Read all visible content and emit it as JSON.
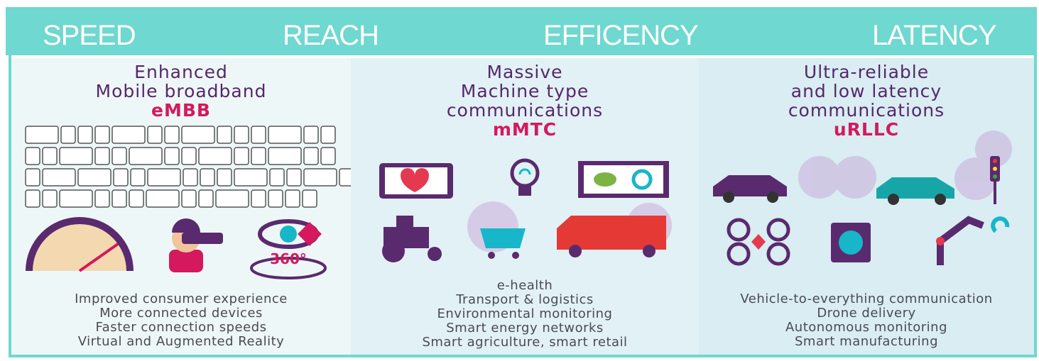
{
  "header": {
    "labels": [
      "SPEED",
      "REACH",
      "EFFICENCY",
      "LATENCY"
    ]
  },
  "columns": [
    {
      "title_lines": [
        "Enhanced",
        "Mobile broadband"
      ],
      "acronym": "eMBB",
      "icon_label": "360°",
      "items": [
        "Improved consumer experience",
        "More connected devices",
        "Faster connection speeds",
        "Virtual and Augmented Reality"
      ]
    },
    {
      "title_lines": [
        "Massive",
        "Machine type",
        "communications"
      ],
      "acronym": "mMTC",
      "items": [
        "e-health",
        "Transport & logistics",
        "Environmental monitoring",
        "Smart energy networks",
        "Smart agriculture, smart retail"
      ]
    },
    {
      "title_lines": [
        "Ultra-reliable",
        "and low latency",
        "communications"
      ],
      "acronym": "uRLLC",
      "items": [
        "Vehicle-to-everything communication",
        "Drone delivery",
        "Autonomous monitoring",
        "Smart manufacturing"
      ]
    }
  ]
}
